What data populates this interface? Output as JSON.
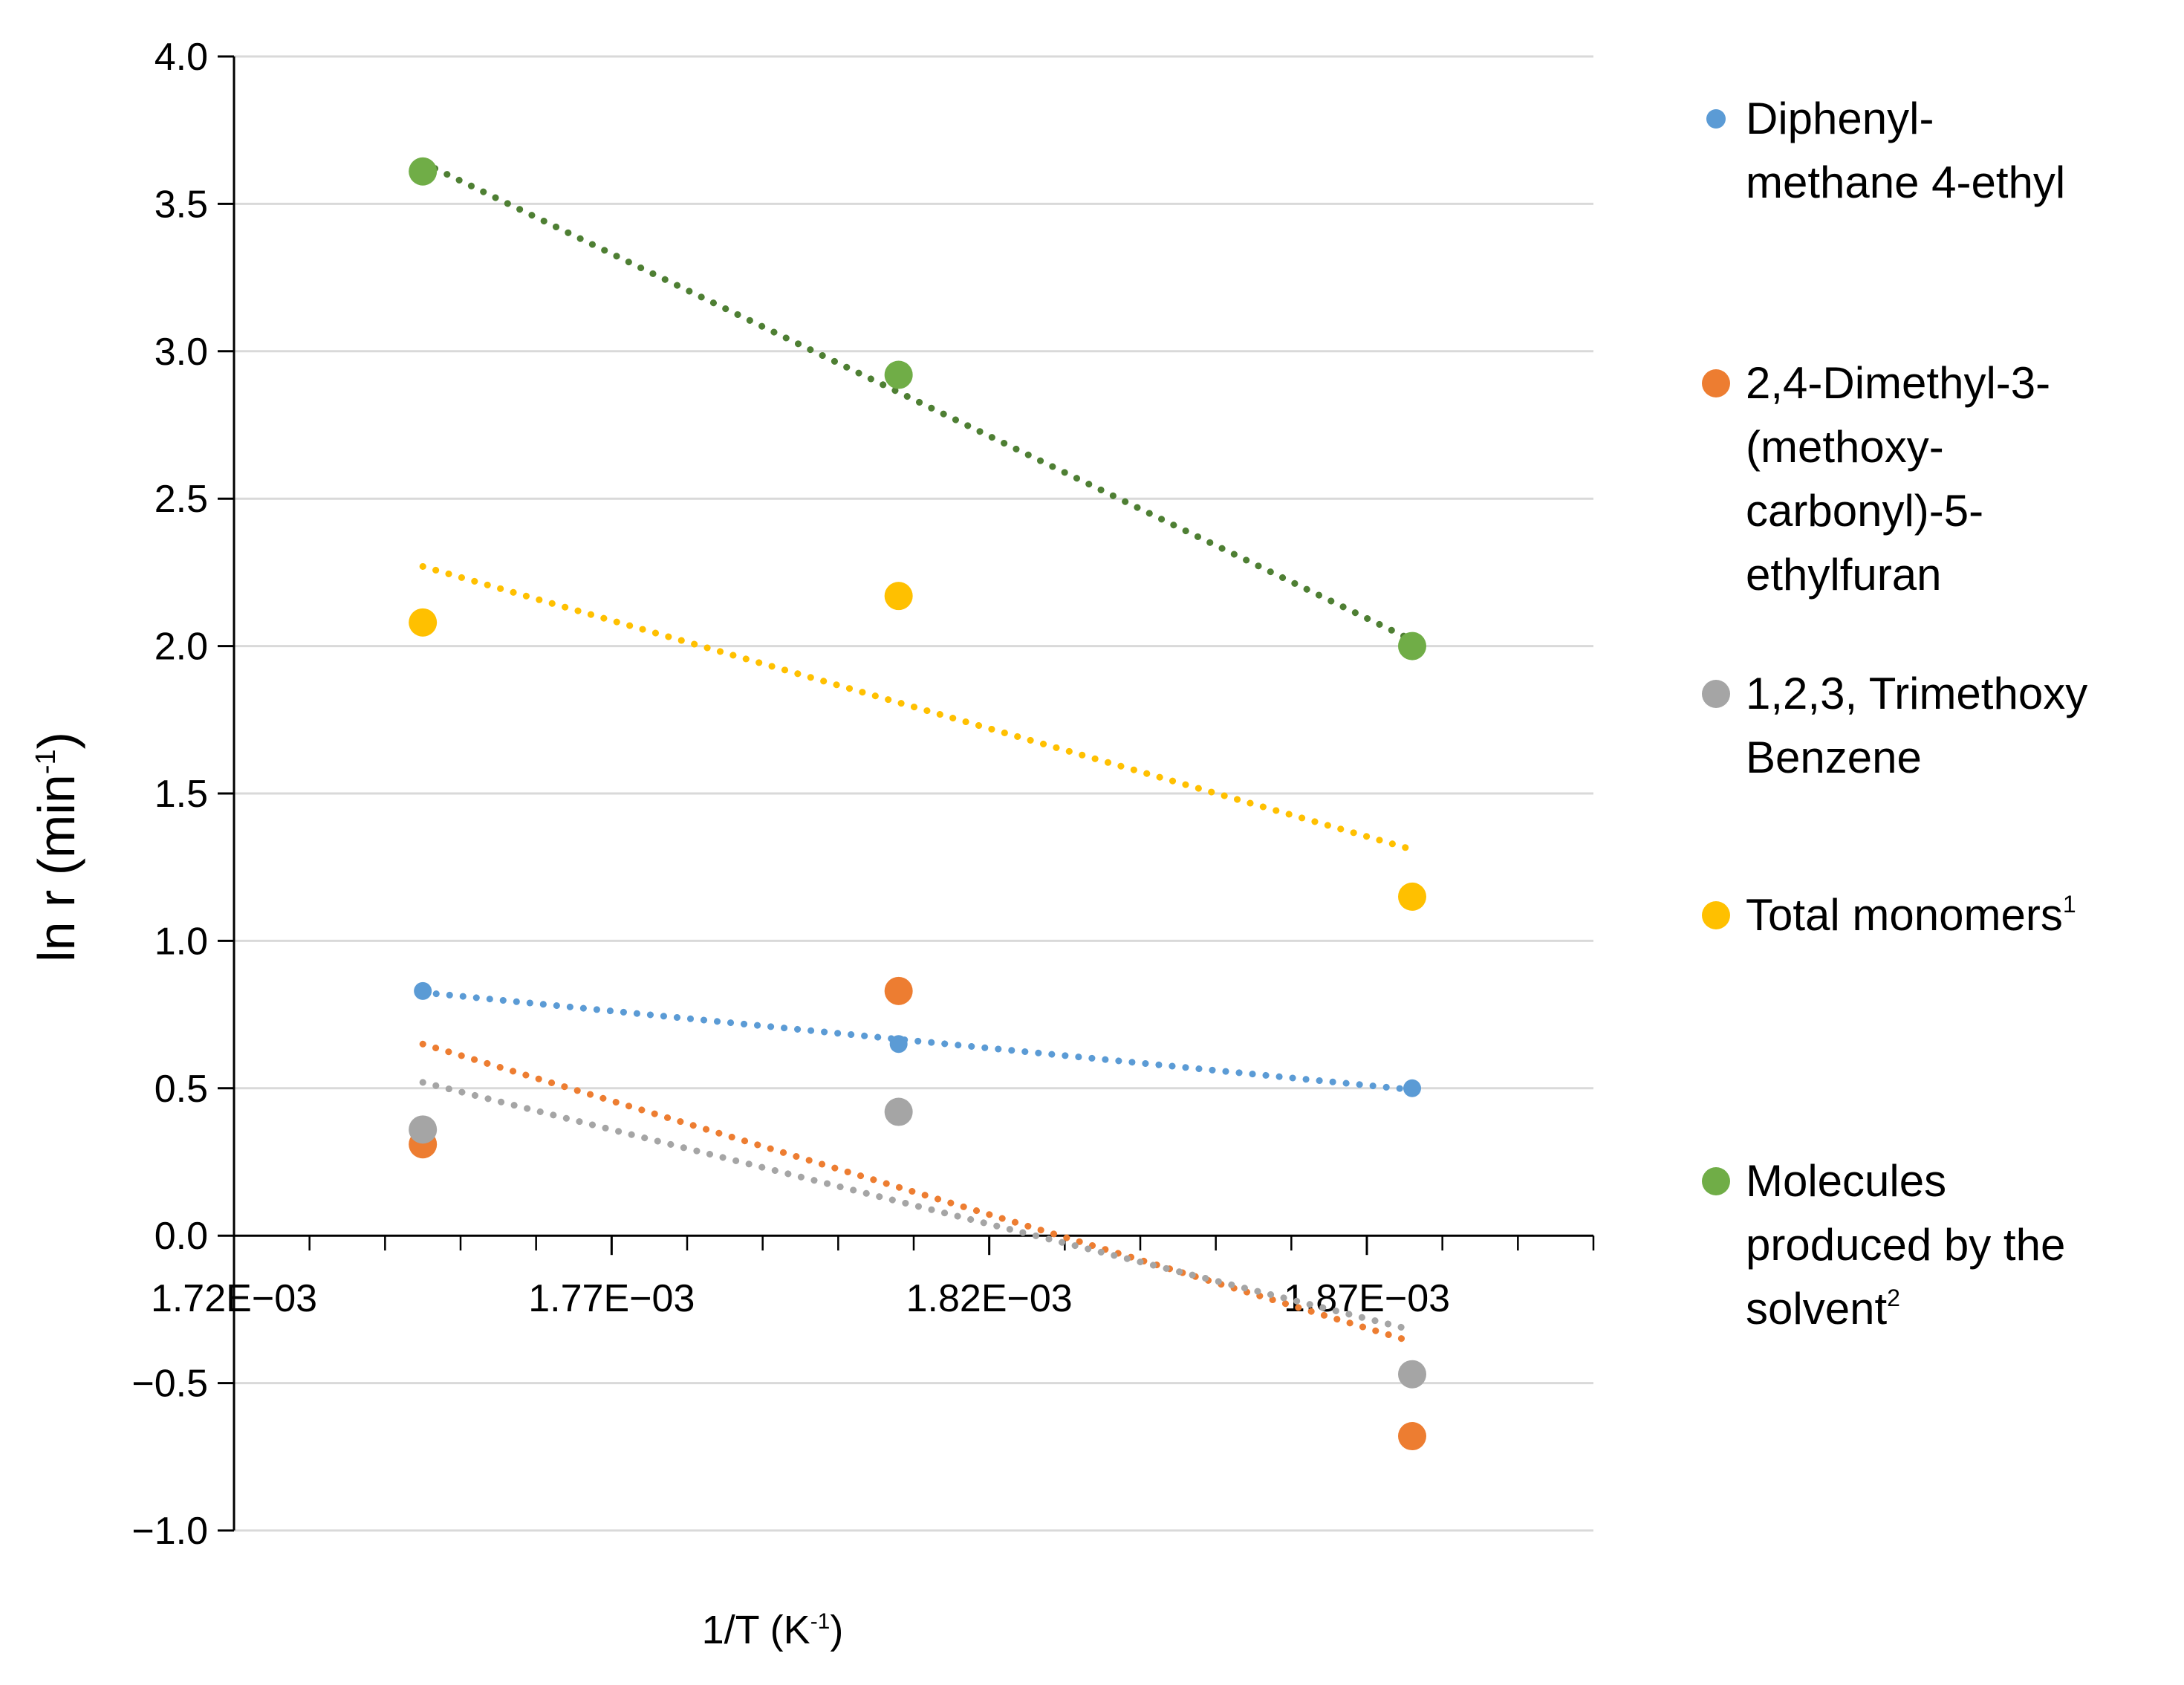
{
  "chart_data": {
    "type": "scatter",
    "title": "",
    "xlabel": "1/T (K",
    "xlabel_sup": "-1",
    "xlabel_end": ")",
    "ylabel": "ln r (min",
    "ylabel_sup": "-1",
    "ylabel_end": ")",
    "xlim": [
      0.00172,
      0.0019
    ],
    "ylim": [
      -1.0,
      4.0
    ],
    "x_ticks": [
      0.00172,
      0.00177,
      0.00182,
      0.00187
    ],
    "x_tick_labels": [
      "1.72E−03",
      "1.77E−03",
      "1.82E−03",
      "1.87E−03"
    ],
    "x_minor_step": 1e-05,
    "y_ticks": [
      -1.0,
      -0.5,
      0.0,
      0.5,
      1.0,
      1.5,
      2.0,
      2.5,
      3.0,
      3.5,
      4.0
    ],
    "y_tick_labels": [
      "−1.0",
      "−0.5",
      "0.0",
      "0.5",
      "1.0",
      "1.5",
      "2.0",
      "2.5",
      "3.0",
      "3.5",
      "4.0"
    ],
    "grid": true,
    "legend_position": "right",
    "series": [
      {
        "name": "Diphenyl-methane 4-ethyl",
        "legend_lines": [
          "Diphenyl-",
          "methane 4-ethyl"
        ],
        "legend_sup": "",
        "color": "#5B9BD5",
        "trend_color": "#5B9BD5",
        "marker_size": "small",
        "x": [
          0.001745,
          0.001808,
          0.001876
        ],
        "y": [
          0.83,
          0.65,
          0.5
        ],
        "trendline": {
          "x": [
            0.001745,
            0.001876
          ],
          "y": [
            0.825,
            0.495
          ]
        }
      },
      {
        "name": "2,4-Dimethyl-3-(methoxy-carbonyl)-5-ethylfuran",
        "legend_lines": [
          "2,4-Dimethyl-3-",
          "(methoxy-",
          "carbonyl)-5-",
          "ethylfuran"
        ],
        "legend_sup": "",
        "color": "#ED7D31",
        "trend_color": "#ED7D31",
        "marker_size": "large",
        "x": [
          0.001745,
          0.001808,
          0.001876
        ],
        "y": [
          0.31,
          0.83,
          -0.68
        ],
        "trendline": {
          "x": [
            0.001745,
            0.001876
          ],
          "y": [
            0.65,
            -0.36
          ]
        }
      },
      {
        "name": "1,2,3, Trimethoxy Benzene",
        "legend_lines": [
          "1,2,3, Trimethoxy",
          "Benzene"
        ],
        "legend_sup": "",
        "color": "#A5A5A5",
        "trend_color": "#A5A5A5",
        "marker_size": "large",
        "x": [
          0.001745,
          0.001808,
          0.001876
        ],
        "y": [
          0.36,
          0.42,
          -0.47
        ],
        "trendline": {
          "x": [
            0.001745,
            0.001876
          ],
          "y": [
            0.52,
            -0.32
          ]
        }
      },
      {
        "name": "Total monomers",
        "legend_lines": [
          "Total monomers"
        ],
        "legend_sup": "1",
        "color": "#FFC000",
        "trend_color": "#FFC000",
        "marker_size": "large",
        "x": [
          0.001745,
          0.001808,
          0.001876
        ],
        "y": [
          2.08,
          2.17,
          1.15
        ],
        "trendline": {
          "x": [
            0.001745,
            0.001876
          ],
          "y": [
            2.27,
            1.31
          ]
        }
      },
      {
        "name": "Molecules produced by the solvent",
        "legend_lines": [
          "Molecules",
          "produced by the",
          "solvent"
        ],
        "legend_sup": "2",
        "color": "#70AD47",
        "trend_color": "#4E7F33",
        "marker_size": "large",
        "x": [
          0.001745,
          0.001808,
          0.001876
        ],
        "y": [
          3.61,
          2.92,
          2.0
        ],
        "trendline": {
          "x": [
            0.001745,
            0.001876
          ],
          "y": [
            3.64,
            2.02
          ]
        }
      }
    ]
  }
}
